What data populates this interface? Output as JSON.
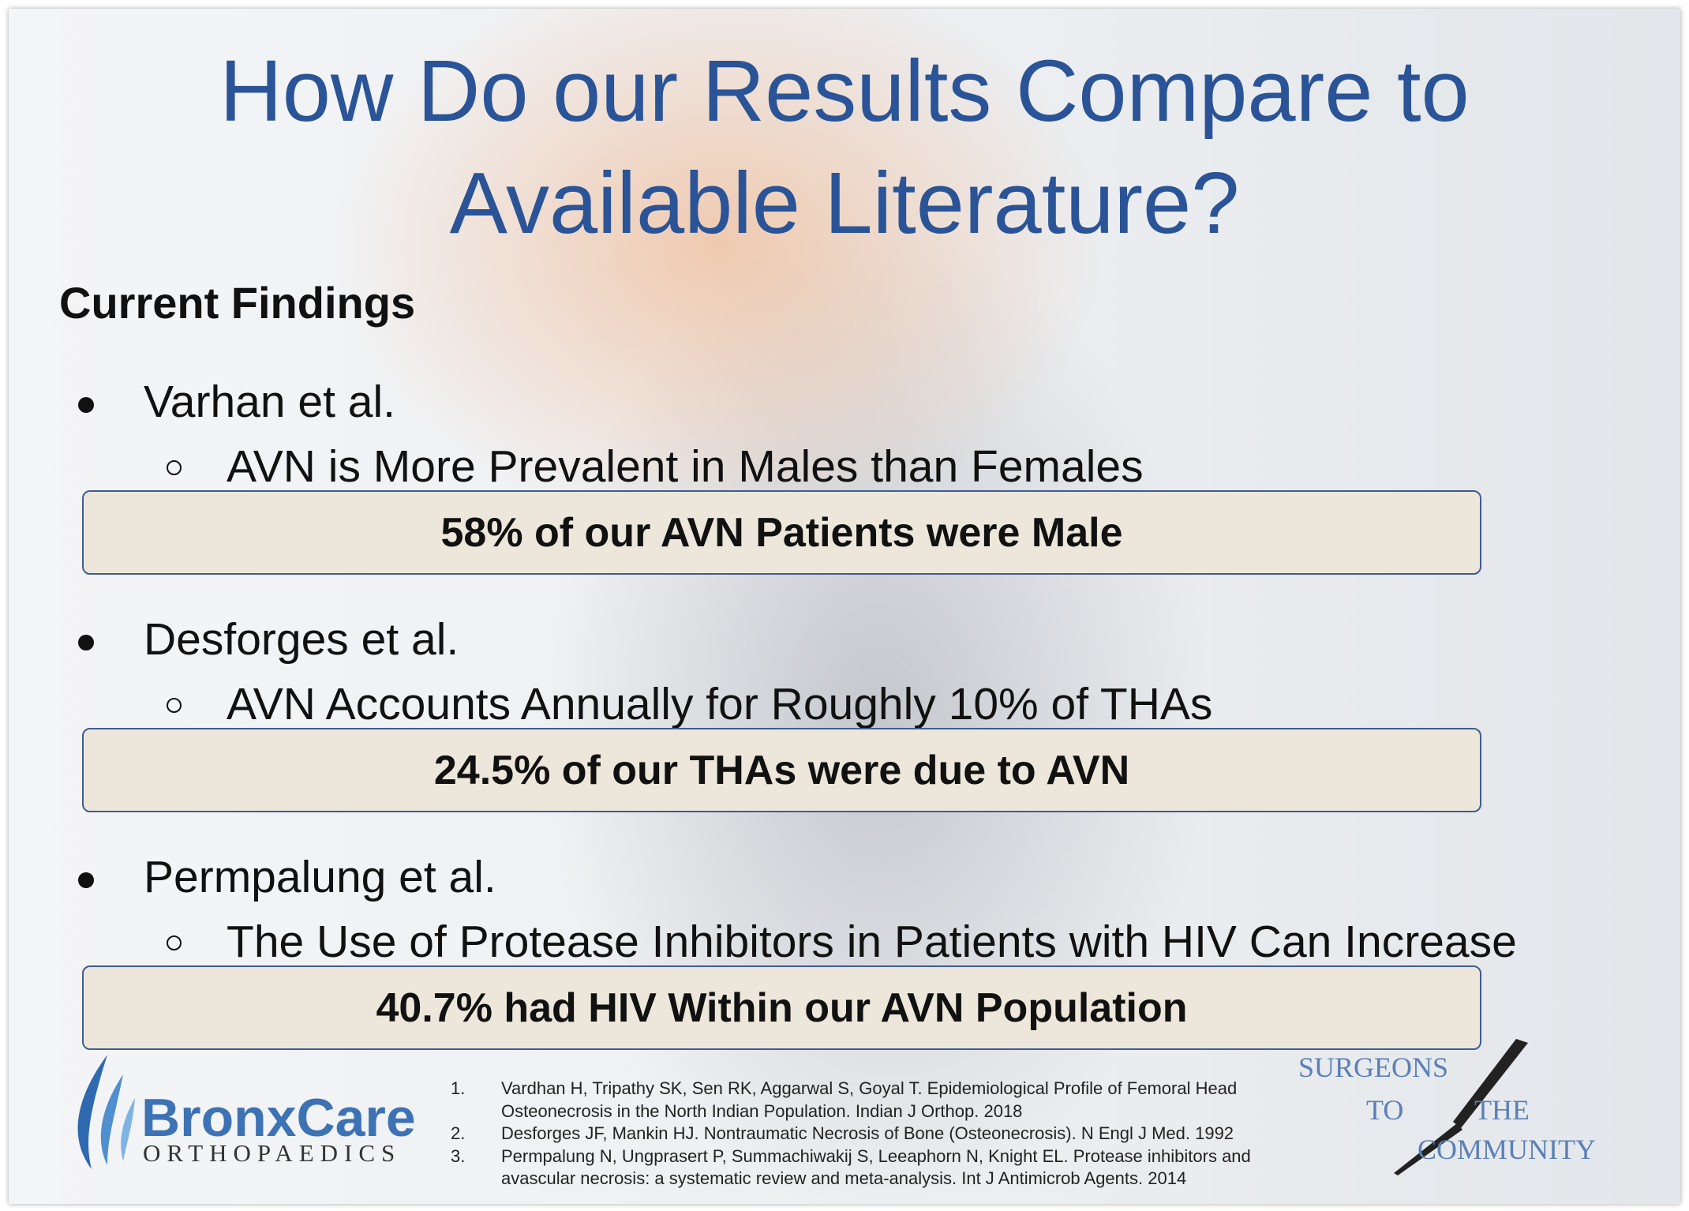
{
  "slide": {
    "title": [
      "How Do our Results Compare to",
      "Available Literature?"
    ],
    "section_heading": "Current Findings",
    "items": [
      {
        "author": "Varhan et al.",
        "finding": "AVN is More Prevalent in Males than Females",
        "result": "58% of our AVN Patients were Male"
      },
      {
        "author": "Desforges et al.",
        "finding": "AVN Accounts Annually for Roughly 10% of THAs",
        "result": "24.5% of our THAs were due to AVN"
      },
      {
        "author": "Permpalung et al.",
        "finding": "The Use of Protease Inhibitors in Patients with HIV Can Increase",
        "result": "40.7% had HIV Within our AVN Population"
      }
    ],
    "references": [
      {
        "number": "1.",
        "lines": [
          "Vardhan H, Tripathy SK, Sen RK, Aggarwal S, Goyal T. Epidemiological Profile of Femoral Head",
          "Osteonecrosis in the North Indian Population. Indian J Orthop. 2018"
        ]
      },
      {
        "number": "2.",
        "lines": [
          "Desforges JF, Mankin HJ. Nontraumatic Necrosis of Bone (Osteonecrosis). N Engl J Med. 1992"
        ]
      },
      {
        "number": "3.",
        "lines": [
          "Permpalung N, Ungprasert P, Summachiwakij S, Leeaphorn N, Knight EL. Protease inhibitors and",
          "avascular necrosis: a systematic review and meta-analysis. Int J Antimicrob Agents. 2014"
        ]
      }
    ],
    "logo_left": {
      "name": "BronxCare",
      "subtitle": "ORTHOPAEDICS"
    },
    "logo_right": [
      "SURGEONS",
      "TO",
      "THE",
      "COMMUNITY"
    ]
  }
}
